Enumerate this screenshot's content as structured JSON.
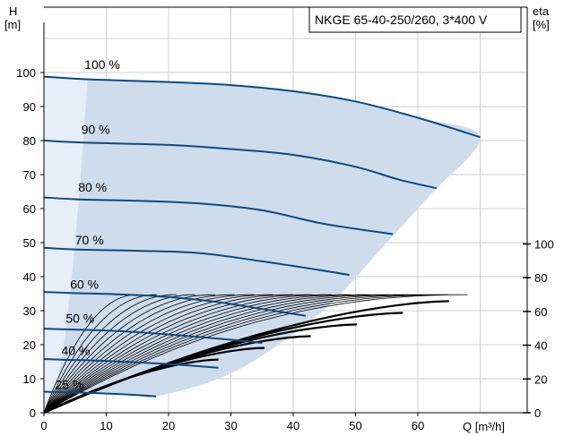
{
  "chart_data": {
    "type": "line",
    "title": "NKGE 65-40-250/260, 3*400 V",
    "x_axis": {
      "label": "Q [m³/h]",
      "range": [
        0,
        80
      ],
      "ticks": [
        0,
        10,
        20,
        30,
        40,
        50,
        60
      ]
    },
    "y_axis_left": {
      "label_line1": "H",
      "label_line2": "[m]",
      "range": [
        0,
        110
      ],
      "ticks": [
        0,
        10,
        20,
        30,
        40,
        50,
        60,
        70,
        80,
        90,
        100
      ]
    },
    "y_axis_right": {
      "label_line1": "eta",
      "label_line2": "[%]",
      "range": [
        0,
        215
      ],
      "ticks": [
        0,
        20,
        40,
        60,
        80,
        100
      ]
    },
    "grid": true,
    "speed_curves": [
      {
        "label": "100 %",
        "label_at": [
          6.5,
          101
        ],
        "points": [
          [
            0,
            98.8
          ],
          [
            7,
            98
          ],
          [
            20,
            97.2
          ],
          [
            30,
            96.3
          ],
          [
            40,
            94.5
          ],
          [
            50,
            91.5
          ],
          [
            60,
            86.7
          ],
          [
            70,
            81
          ]
        ]
      },
      {
        "label": "90 %",
        "label_at": [
          6,
          82
        ],
        "points": [
          [
            0,
            80
          ],
          [
            6.3,
            79.4
          ],
          [
            20,
            78.7
          ],
          [
            30,
            77.5
          ],
          [
            40,
            75.8
          ],
          [
            50,
            72.3
          ],
          [
            57,
            68.5
          ],
          [
            63,
            66
          ]
        ]
      },
      {
        "label": "80 %",
        "label_at": [
          5.5,
          65
        ],
        "points": [
          [
            0,
            63.3
          ],
          [
            5.6,
            62.7
          ],
          [
            15,
            62.3
          ],
          [
            25,
            61.5
          ],
          [
            35,
            59.5
          ],
          [
            45,
            55.5
          ],
          [
            56,
            52.5
          ]
        ]
      },
      {
        "label": "70 %",
        "label_at": [
          5,
          49.5
        ],
        "points": [
          [
            0,
            48.5
          ],
          [
            4.9,
            48
          ],
          [
            15,
            47.6
          ],
          [
            25,
            46.9
          ],
          [
            35,
            44.5
          ],
          [
            44,
            42
          ],
          [
            49,
            40.5
          ]
        ]
      },
      {
        "label": "60 %",
        "label_at": [
          4.2,
          36.5
        ],
        "points": [
          [
            0,
            35.5
          ],
          [
            4.2,
            35.2
          ],
          [
            12,
            34.8
          ],
          [
            20,
            34
          ],
          [
            28,
            32.5
          ],
          [
            35,
            30.5
          ],
          [
            42,
            28.5
          ]
        ]
      },
      {
        "label": "50 %",
        "label_at": [
          3.5,
          26.5
        ],
        "points": [
          [
            0,
            24.7
          ],
          [
            3.5,
            24.5
          ],
          [
            12,
            24
          ],
          [
            20,
            23
          ],
          [
            28,
            21.8
          ],
          [
            35,
            20.5
          ]
        ]
      },
      {
        "label": "40 %",
        "label_at": [
          2.8,
          17
        ],
        "points": [
          [
            0,
            15.8
          ],
          [
            2.8,
            15.6
          ],
          [
            10,
            15.2
          ],
          [
            18,
            14.5
          ],
          [
            24,
            13.8
          ],
          [
            28,
            13.2
          ]
        ]
      },
      {
        "label": "25 %",
        "label_at": [
          1.8,
          7
        ],
        "points": [
          [
            0,
            6.2
          ],
          [
            1.8,
            6.1
          ],
          [
            8,
            5.8
          ],
          [
            14,
            5.3
          ],
          [
            18,
            4.8
          ]
        ]
      }
    ],
    "operating_envelope": [
      [
        0,
        98.8
      ],
      [
        7,
        98
      ],
      [
        20,
        97.2
      ],
      [
        30,
        96.3
      ],
      [
        40,
        94.5
      ],
      [
        50,
        91.5
      ],
      [
        60,
        86.7
      ],
      [
        70,
        81
      ],
      [
        62,
        64
      ],
      [
        54,
        48
      ],
      [
        46,
        32
      ],
      [
        36,
        18
      ],
      [
        28,
        10
      ],
      [
        18,
        4.8
      ],
      [
        14,
        5.3
      ],
      [
        8,
        5.8
      ],
      [
        1.8,
        6.1
      ],
      [
        0,
        6.2
      ]
    ],
    "envelope_left_band": [
      [
        0,
        98.8
      ],
      [
        7,
        98
      ],
      [
        6.3,
        79.4
      ],
      [
        5.6,
        62.7
      ],
      [
        4.9,
        48
      ],
      [
        4.2,
        35.2
      ],
      [
        3.5,
        24.5
      ],
      [
        2.8,
        15.6
      ],
      [
        1.8,
        6.1
      ],
      [
        0,
        0
      ]
    ],
    "efficiency_curves": {
      "count": 18,
      "peak_eta": 70,
      "max_q_first": 15,
      "max_q_last": 68
    },
    "efficiency_bold_curves": {
      "count": 6,
      "max_q_first": 28,
      "max_q_last": 65
    },
    "colors": {
      "speed_curve": "#0b4a85",
      "envelope_fill": "#cfdceb",
      "envelope_band": "#e6eef7",
      "grid": "#cfcfcf",
      "eff_curve": "#000000"
    }
  }
}
